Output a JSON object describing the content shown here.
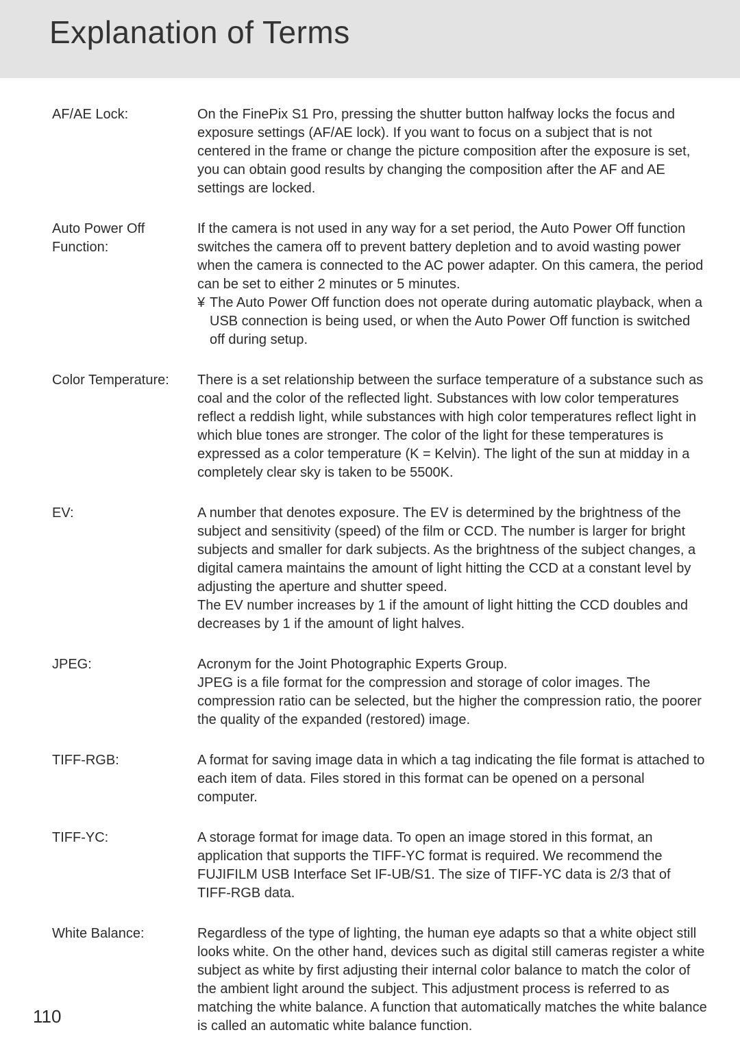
{
  "page_number": "110",
  "title": "Explanation of Terms",
  "colors": {
    "header_bg": "#e3e3e3",
    "page_bg": "#ffffff",
    "text": "#2b2b2b",
    "title_text": "#333333"
  },
  "typography": {
    "title_fontsize_pt": 34,
    "body_fontsize_pt": 15,
    "body_lineheight": 1.35,
    "font_family": "Arial, Helvetica, sans-serif"
  },
  "terms": [
    {
      "label": "AF/AE Lock:",
      "para1": "On the FinePix S1 Pro, pressing the shutter button halfway locks the focus and exposure settings (AF/AE lock). If you want to focus on a subject that is not centered in the frame or change the picture composition after the exposure is set, you can obtain good results by changing the composition after the AF and AE settings are locked."
    },
    {
      "label": "Auto Power Off Function:",
      "para1": "If the camera is not used in any way for a set period, the Auto Power Off function switches the camera off to prevent battery depletion and to avoid wasting power when the camera is connected to the AC power adapter. On this camera, the period can be set to either 2 minutes or 5 minutes.",
      "note_bullet": "¥",
      "note_text": "The Auto Power Off function does not operate during automatic playback, when a USB connection is being used, or when the Auto Power Off function is switched off during setup."
    },
    {
      "label": "Color Temperature:",
      "para1": "There is a set relationship between the surface temperature of a substance such as coal and the color of the reflected light. Substances with low color temperatures reflect a reddish light, while substances with high color temperatures reflect light in which blue tones are stronger. The color of the light for these temperatures is expressed as a color temperature (K = Kelvin). The light of the sun at midday in a completely clear sky is taken to be 5500K."
    },
    {
      "label": "EV:",
      "para1": "A number that denotes exposure. The EV is determined by the brightness of the subject and sensitivity (speed) of the film or CCD. The number is larger for bright subjects and smaller for dark subjects. As the brightness of the subject changes, a digital camera maintains the amount of light hitting the CCD at a constant level by adjusting the aperture and shutter speed.",
      "para2": "The EV number increases by 1 if the amount of light hitting the CCD doubles and decreases by 1 if the amount of light halves."
    },
    {
      "label": "JPEG:",
      "para1": "Acronym for the Joint Photographic Experts Group.",
      "para2": "JPEG is a file format for the compression and storage of color images. The compression ratio can be selected, but the higher the compression ratio, the poorer the quality of the expanded (restored) image."
    },
    {
      "label": "TIFF-RGB:",
      "para1": "A format for saving image data in which a tag indicating the file format is attached to each item of data. Files stored in this format can be opened on a personal computer."
    },
    {
      "label": "TIFF-YC:",
      "para1": "A storage format for image data. To open an image stored in this format, an application that supports the TIFF-YC format is required. We recommend the FUJIFILM USB Interface Set IF-UB/S1. The size of TIFF-YC data is 2/3 that of TIFF-RGB data."
    },
    {
      "label": "White Balance:",
      "para1": "Regardless of the type of lighting, the human eye adapts so that a white object still looks white. On the other hand, devices such as digital still cameras register a white subject as white by first adjusting their internal color balance to match the color of the ambient light around the subject. This adjustment process is referred to as matching the white balance. A function that automatically matches the white balance is called an automatic white balance function."
    }
  ]
}
